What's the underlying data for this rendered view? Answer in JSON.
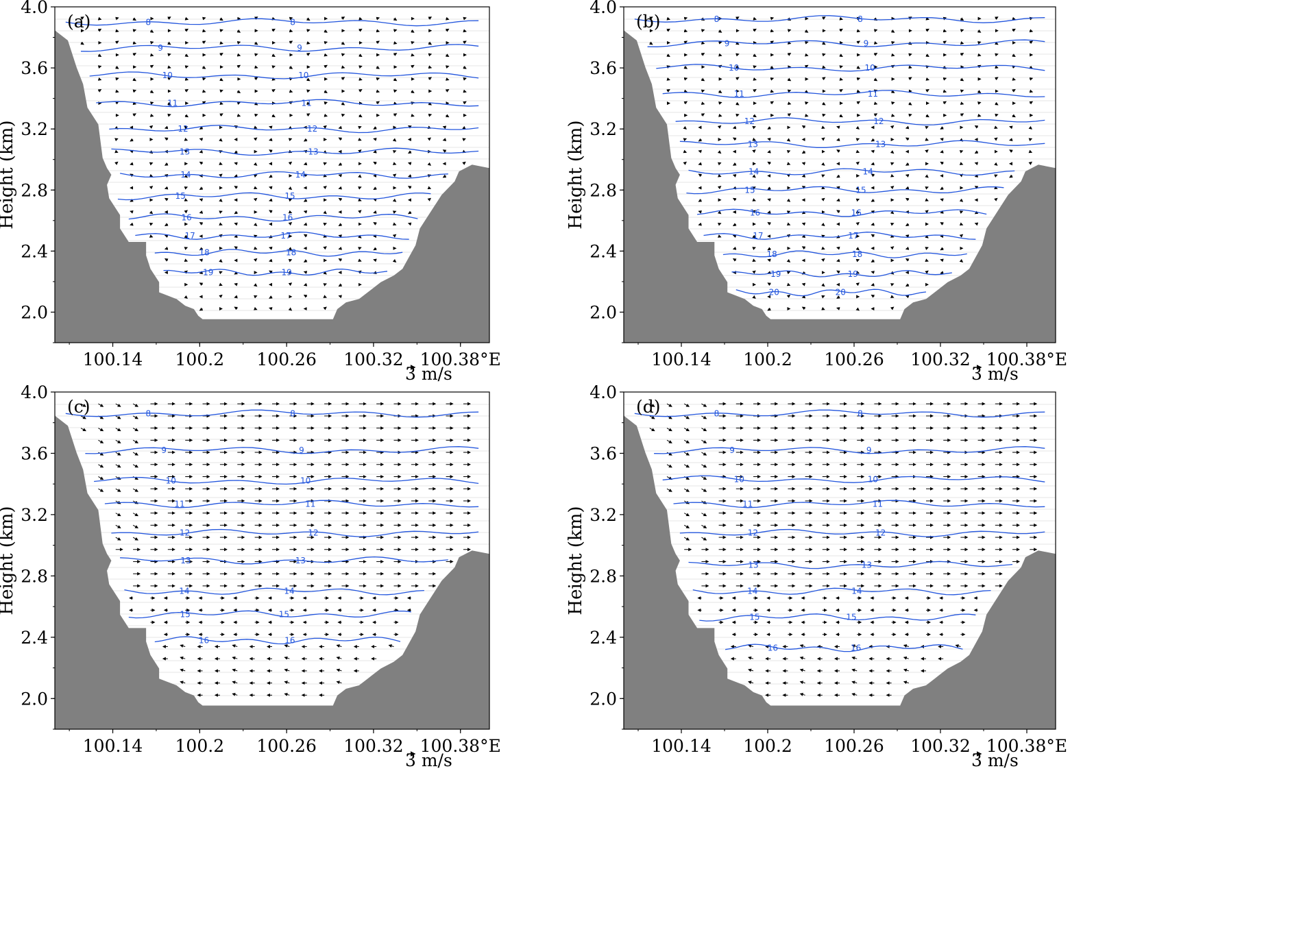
{
  "chart_data": [
    {
      "type": "vector-contour",
      "panel_label": "(a)",
      "ylabel": "Height (km)",
      "x_tick_labels": [
        "100.14",
        "100.2",
        "100.26",
        "100.32",
        "100.38°E"
      ],
      "y_tick_labels": [
        "2.0",
        "2.4",
        "2.8",
        "3.2",
        "3.6",
        "4.0"
      ],
      "xlim": [
        100.1,
        100.4
      ],
      "ylim": [
        1.8,
        4.0
      ],
      "reference_vector_label": "3 m/s",
      "reference_vector_ms": 3,
      "terrain_color": "#808080",
      "contour_color": "#2255dd",
      "contour_levels": [
        8,
        9,
        10,
        11,
        12,
        13,
        14,
        15,
        16,
        17,
        18,
        19
      ],
      "contour_heights_km": [
        3.9,
        3.73,
        3.55,
        3.37,
        3.2,
        3.05,
        2.9,
        2.76,
        2.62,
        2.5,
        2.39,
        2.26
      ],
      "wind_regime": "weak"
    },
    {
      "type": "vector-contour",
      "panel_label": "(b)",
      "ylabel": "Height (km)",
      "x_tick_labels": [
        "100.14",
        "100.2",
        "100.26",
        "100.32",
        "100.38°E"
      ],
      "y_tick_labels": [
        "2.0",
        "2.4",
        "2.8",
        "3.2",
        "3.6",
        "4.0"
      ],
      "xlim": [
        100.1,
        100.4
      ],
      "ylim": [
        1.8,
        4.0
      ],
      "reference_vector_label": "3 m/s",
      "reference_vector_ms": 3,
      "terrain_color": "#808080",
      "contour_color": "#2255dd",
      "contour_levels": [
        8,
        9,
        10,
        11,
        12,
        13,
        14,
        15,
        16,
        17,
        18,
        19,
        20
      ],
      "contour_heights_km": [
        3.92,
        3.76,
        3.6,
        3.43,
        3.25,
        3.1,
        2.92,
        2.8,
        2.65,
        2.5,
        2.38,
        2.25,
        2.13
      ],
      "wind_regime": "weak"
    },
    {
      "type": "vector-contour",
      "panel_label": "(c)",
      "ylabel": "Height (km)",
      "x_tick_labels": [
        "100.14",
        "100.2",
        "100.26",
        "100.32",
        "100.38°E"
      ],
      "y_tick_labels": [
        "2.0",
        "2.4",
        "2.8",
        "3.2",
        "3.6",
        "4.0"
      ],
      "xlim": [
        100.1,
        100.4
      ],
      "ylim": [
        1.8,
        4.0
      ],
      "reference_vector_label": "3 m/s",
      "reference_vector_ms": 3,
      "terrain_color": "#808080",
      "contour_color": "#2255dd",
      "contour_levels": [
        8,
        9,
        10,
        11,
        12,
        13,
        14,
        15,
        16
      ],
      "contour_heights_km": [
        3.86,
        3.62,
        3.42,
        3.27,
        3.08,
        2.9,
        2.7,
        2.55,
        2.38
      ],
      "wind_regime": "strong"
    },
    {
      "type": "vector-contour",
      "panel_label": "(d)",
      "ylabel": "Height (km)",
      "x_tick_labels": [
        "100.14",
        "100.2",
        "100.26",
        "100.32",
        "100.38°E"
      ],
      "y_tick_labels": [
        "2.0",
        "2.4",
        "2.8",
        "3.2",
        "3.6",
        "4.0"
      ],
      "xlim": [
        100.1,
        100.4
      ],
      "ylim": [
        1.8,
        4.0
      ],
      "reference_vector_label": "3 m/s",
      "reference_vector_ms": 3,
      "terrain_color": "#808080",
      "contour_color": "#2255dd",
      "contour_levels": [
        8,
        9,
        10,
        11,
        12,
        13,
        14,
        15,
        16
      ],
      "contour_heights_km": [
        3.86,
        3.62,
        3.43,
        3.27,
        3.08,
        2.87,
        2.7,
        2.53,
        2.33
      ],
      "wind_regime": "strong"
    }
  ]
}
